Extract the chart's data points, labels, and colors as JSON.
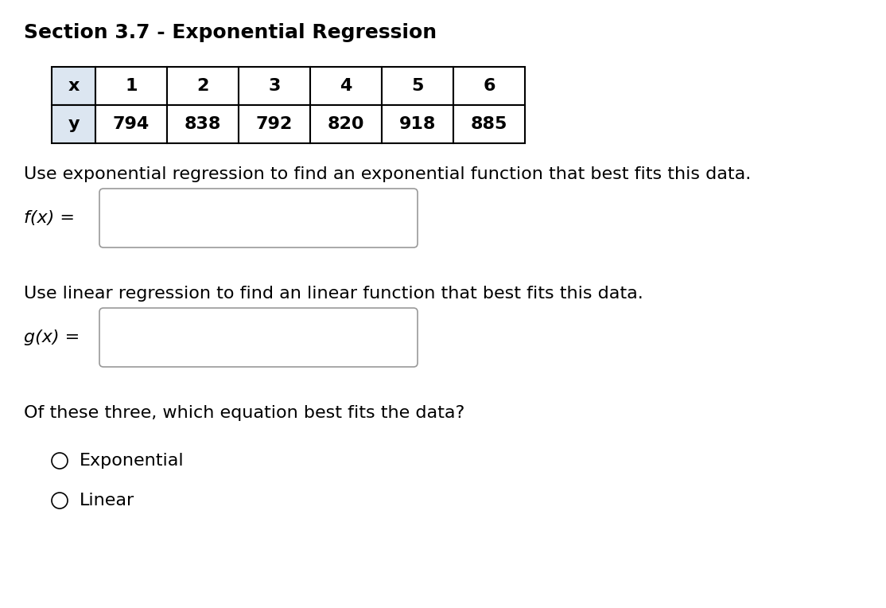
{
  "title": "Section 3.7 - Exponential Regression",
  "table_x_values": [
    "x",
    "1",
    "2",
    "3",
    "4",
    "5",
    "6"
  ],
  "table_y_values": [
    "y",
    "794",
    "838",
    "792",
    "820",
    "918",
    "885"
  ],
  "table_header_color": "#dce6f1",
  "table_border_color": "#000000",
  "text1": "Use exponential regression to find an exponential function that best fits this data.",
  "label_fx": "f(x) =",
  "text2": "Use linear regression to find an linear function that best fits this data.",
  "label_gx": "g(x) =",
  "text3": "Of these three, which equation best fits the data?",
  "radio1": "Exponential",
  "radio2": "Linear",
  "bg_color": "#ffffff",
  "text_color": "#000000",
  "font_size_title": 18,
  "font_size_body": 16,
  "font_size_table": 16
}
